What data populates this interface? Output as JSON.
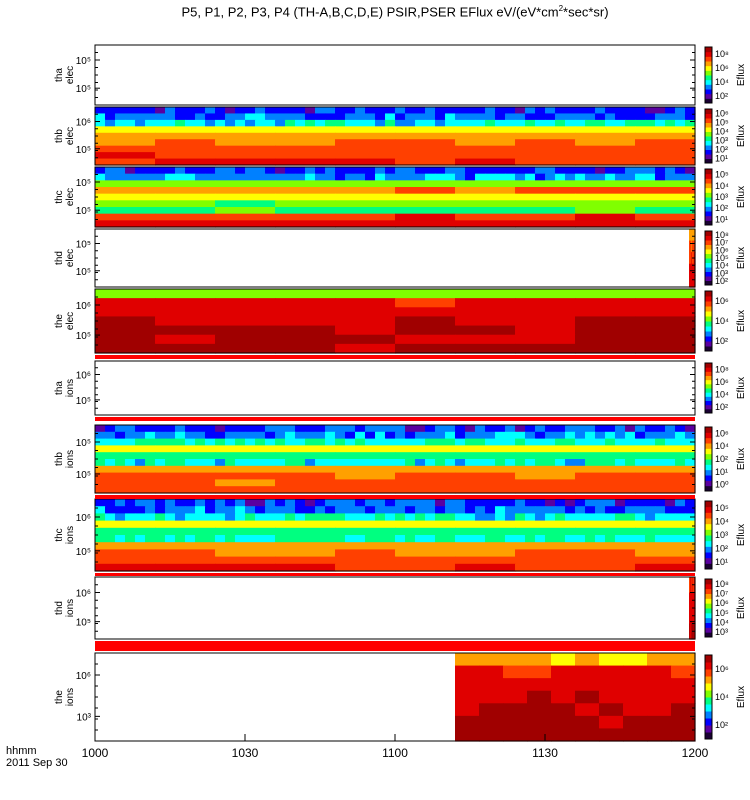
{
  "title": {
    "prefix": "P5, P1, P2, P3, P4 (TH-A,B,C,D,E) PSIR,PSER EFlux eV/(eV*cm",
    "sup": "2",
    "suffix": "*sec*sr)"
  },
  "x_axis": {
    "hhmm": "hhmm",
    "date": "2011 Sep 30",
    "ticks": [
      "1000",
      "1030",
      "1100",
      "1130",
      "1200"
    ]
  },
  "colorbar_label": "Eflux",
  "chart_data": {
    "type": "heatmap",
    "x_range": [
      "10:00",
      "12:00"
    ],
    "x_tick_values": [
      "1000",
      "1030",
      "1100",
      "1130",
      "1200"
    ],
    "colorscale": [
      "#1a0033",
      "#5a00a0",
      "#0000ff",
      "#0080ff",
      "#00ffff",
      "#00ff80",
      "#80ff00",
      "#ffff00",
      "#ffa000",
      "#ff4000",
      "#e00000",
      "#a00000"
    ],
    "panels": [
      {
        "label": [
          "tha",
          "elec"
        ],
        "y_ticks": [
          "10⁵",
          "10⁵"
        ],
        "cbar_ticks": [
          "10⁸",
          "10⁶",
          "10⁴",
          "10²"
        ],
        "start_frac": null,
        "rows": []
      },
      {
        "label": [
          "thb",
          "elec"
        ],
        "y_ticks": [
          "10⁶",
          "10⁵"
        ],
        "cbar_ticks": [
          "10⁶",
          "10⁵",
          "10⁴",
          "10³",
          "10²",
          "10¹"
        ],
        "start_frac": 0.0,
        "rows": [
          0.2,
          0.25,
          0.38,
          0.62,
          0.72,
          0.78,
          0.82,
          0.85,
          0.87
        ]
      },
      {
        "label": [
          "thc",
          "elec"
        ],
        "y_ticks": [
          "10⁵",
          "10⁵"
        ],
        "cbar_ticks": [
          "10⁵",
          "10⁴",
          "10³",
          "10²",
          "10¹"
        ],
        "start_frac": 0.0,
        "rows": [
          0.2,
          0.3,
          0.55,
          0.78,
          0.62,
          0.52,
          0.5,
          0.85,
          0.88
        ]
      },
      {
        "label": [
          "thd",
          "elec"
        ],
        "y_ticks": [
          "10⁵",
          "10⁵"
        ],
        "cbar_ticks": [
          "10⁸",
          "10⁷",
          "10⁶",
          "10⁵",
          "10⁴",
          "10³",
          "10²"
        ],
        "start_frac": 0.99,
        "rows": [
          0.75,
          0.8,
          0.85,
          0.9,
          0.92
        ]
      },
      {
        "label": [
          "the",
          "elec"
        ],
        "y_ticks": [
          "10⁶",
          "10⁵"
        ],
        "cbar_ticks": [
          "10⁶",
          "10⁴",
          "10²"
        ],
        "start_frac": 0.0,
        "rows": [
          0.55,
          0.88,
          0.92,
          0.94,
          0.96,
          0.97,
          0.98
        ]
      },
      {
        "label": [
          "tha",
          "ions"
        ],
        "y_ticks": [
          "10⁶",
          "10⁵"
        ],
        "cbar_ticks": [
          "10⁸",
          "10⁶",
          "10⁴",
          "10²"
        ],
        "start_frac": null,
        "rows": []
      },
      {
        "label": [
          "thb",
          "ions"
        ],
        "y_ticks": [
          "10⁵",
          "10⁵"
        ],
        "cbar_ticks": [
          "10⁶",
          "10⁴",
          "10²",
          "10¹",
          "10⁰"
        ],
        "start_frac": 0.0,
        "rows": [
          0.2,
          0.28,
          0.4,
          0.62,
          0.45,
          0.38,
          0.72,
          0.78,
          0.8,
          0.82
        ]
      },
      {
        "label": [
          "thc",
          "ions"
        ],
        "y_ticks": [
          "10⁶",
          "10⁵"
        ],
        "cbar_ticks": [
          "10⁵",
          "10⁴",
          "10³",
          "10²",
          "10¹"
        ],
        "start_frac": 0.0,
        "rows": [
          0.2,
          0.25,
          0.38,
          0.62,
          0.45,
          0.4,
          0.72,
          0.78,
          0.82,
          0.86
        ]
      },
      {
        "label": [
          "thd",
          "ions"
        ],
        "y_ticks": [
          "10⁶",
          "10⁵"
        ],
        "cbar_ticks": [
          "10⁸",
          "10⁷",
          "10⁶",
          "10⁵",
          "10⁴",
          "10³"
        ],
        "start_frac": 0.99,
        "rows": [
          0.85,
          0.9,
          0.92,
          0.95
        ]
      },
      {
        "label": [
          "the",
          "ions"
        ],
        "y_ticks": [
          "10⁶",
          "10³"
        ],
        "cbar_ticks": [
          "10⁶",
          "10⁴",
          "10²"
        ],
        "start_frac": 0.6,
        "rows": [
          0.7,
          0.88,
          0.92,
          0.95,
          0.96,
          0.97,
          0.98
        ]
      }
    ]
  }
}
